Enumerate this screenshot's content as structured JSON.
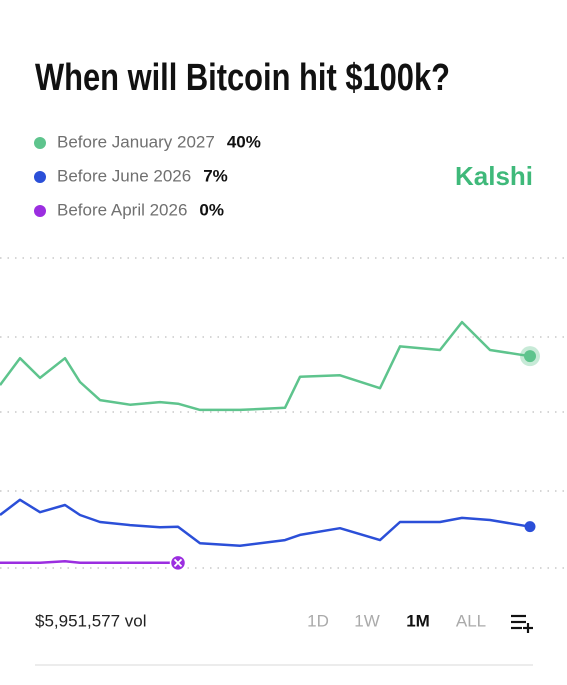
{
  "chart_data": {
    "type": "line",
    "title": "When will Bitcoin hit $100k?",
    "brand": "Kalshi",
    "x": [
      0,
      20,
      40,
      65,
      80,
      100,
      130,
      160,
      178,
      200,
      240,
      285,
      300,
      340,
      380,
      400,
      440,
      462,
      490,
      530
    ],
    "xlim": [
      0,
      530
    ],
    "ylim": [
      -1,
      59
    ],
    "series": [
      {
        "name": "Before January 2027",
        "color": "#5ec48d",
        "current": 40,
        "current_label": "40%",
        "values": [
          34.4,
          39.6,
          35.8,
          39.6,
          35,
          31.5,
          30.6,
          31.1,
          30.8,
          29.6,
          29.6,
          30,
          36,
          36.3,
          33.8,
          41.9,
          41.2,
          46.6,
          41.2,
          40
        ]
      },
      {
        "name": "Before June 2026",
        "color": "#2b4fd8",
        "current": 7,
        "current_label": "7%",
        "values": [
          9.25,
          12.2,
          9.8,
          11.2,
          9.25,
          7.9,
          7.3,
          6.9,
          7,
          3.8,
          3.3,
          4.4,
          5.4,
          6.7,
          4.4,
          7.9,
          7.9,
          8.7,
          8.3,
          7
        ]
      },
      {
        "name": "Before April 2026",
        "color": "#9b2ee0",
        "current": 0,
        "current_label": "0%",
        "values": [
          0,
          0,
          0,
          0.3,
          0,
          0,
          0,
          0,
          0,
          null,
          null,
          null,
          null,
          null,
          null,
          null,
          null,
          null,
          null,
          null
        ]
      }
    ],
    "volume": {
      "value": 5951577,
      "label": "$5,951,577 vol"
    },
    "ranges": [
      "1D",
      "1W",
      "1M",
      "ALL"
    ],
    "selected_range": "1M"
  }
}
